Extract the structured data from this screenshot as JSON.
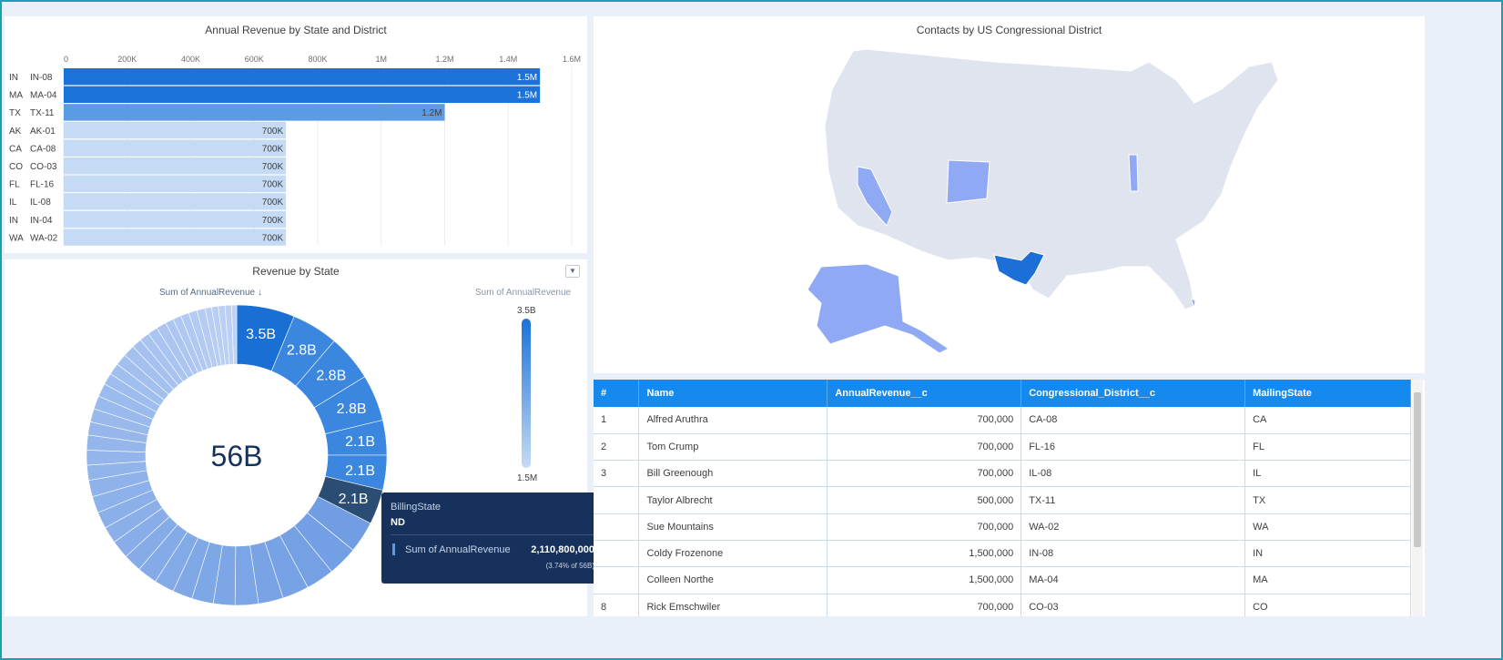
{
  "bar_panel": {
    "title": "Annual Revenue by State and District"
  },
  "donut_panel": {
    "title": "Revenue by State",
    "measure_label": "Sum of AnnualRevenue ↓",
    "legend_title": "Sum of AnnualRevenue",
    "legend_max": "3.5B",
    "legend_min": "1.5M",
    "center_label": "56B",
    "menu_icon": "chevron-down-icon"
  },
  "map_panel": {
    "title": "Contacts by US Congressional District"
  },
  "tooltip": {
    "dim_label": "BillingState",
    "dim_value": "ND",
    "measure_label": "Sum of AnnualRevenue",
    "measure_value": "2,110,800,000",
    "percent": "(3.74% of 56B)"
  },
  "table": {
    "columns": [
      "#",
      "Name",
      "AnnualRevenue__c",
      "Congressional_District__c",
      "MailingState"
    ],
    "rows": [
      [
        "1",
        "Alfred Aruthra",
        "700,000",
        "CA-08",
        "CA"
      ],
      [
        "2",
        "Tom Crump",
        "700,000",
        "FL-16",
        "FL"
      ],
      [
        "3",
        "Bill Greenough",
        "700,000",
        "IL-08",
        "IL"
      ],
      [
        "",
        "Taylor Albrecht",
        "500,000",
        "TX-11",
        "TX"
      ],
      [
        "",
        "Sue Mountains",
        "700,000",
        "WA-02",
        "WA"
      ],
      [
        "",
        "Coldy Frozenone",
        "1,500,000",
        "IN-08",
        "IN"
      ],
      [
        "",
        "Colleen Northe",
        "1,500,000",
        "MA-04",
        "MA"
      ],
      [
        "8",
        "Rick Emschwiler",
        "700,000",
        "CO-03",
        "CO"
      ]
    ]
  },
  "colors": {
    "accent": "#1589ee",
    "dark": "#16325c",
    "bar_dark": "#1b72d8",
    "bar_mid": "#5a9be3",
    "bar_light": "#c5dbf5",
    "map_base": "#e0e4ee",
    "map_light": "#8fa9f4",
    "map_dark": "#1b6fd6"
  },
  "chart_data": [
    {
      "type": "bar",
      "orientation": "horizontal",
      "title": "Annual Revenue by State and District",
      "categories": [
        [
          "IN",
          "IN-08"
        ],
        [
          "MA",
          "MA-04"
        ],
        [
          "TX",
          "TX-11"
        ],
        [
          "AK",
          "AK-01"
        ],
        [
          "CA",
          "CA-08"
        ],
        [
          "CO",
          "CO-03"
        ],
        [
          "FL",
          "FL-16"
        ],
        [
          "IL",
          "IL-08"
        ],
        [
          "IN",
          "IN-04"
        ],
        [
          "WA",
          "WA-02"
        ]
      ],
      "values": [
        1500000,
        1500000,
        1200000,
        700000,
        700000,
        700000,
        700000,
        700000,
        700000,
        700000
      ],
      "data_labels": [
        "1.5M",
        "1.5M",
        "1.2M",
        "700K",
        "700K",
        "700K",
        "700K",
        "700K",
        "700K",
        "700K"
      ],
      "xticks": [
        "0",
        "200K",
        "400K",
        "600K",
        "800K",
        "1M",
        "1.2M",
        "1.4M",
        "1.6M"
      ],
      "xlim": [
        0,
        1600000
      ],
      "grid": true
    },
    {
      "type": "pie",
      "donut": true,
      "title": "Revenue by State",
      "total_label": "56B",
      "labeled_values": [
        3.5,
        2.8,
        2.8,
        2.8,
        2.1,
        2.1,
        2.1
      ],
      "labels": [
        "3.5B",
        "2.8B",
        "2.8B",
        "2.8B",
        "2.1B",
        "2.1B",
        "2.1B"
      ],
      "highlighted_index": 6,
      "other_values": [
        1.9,
        1.8,
        1.7,
        1.6,
        1.5,
        1.4,
        1.3,
        1.3,
        1.2,
        1.2,
        1.2,
        1.1,
        1.1,
        1.0,
        1.0,
        1.0,
        1.0,
        0.9,
        0.9,
        0.9,
        0.8,
        0.8,
        0.8,
        0.8,
        0.7,
        0.7,
        0.7,
        0.7,
        0.6,
        0.6,
        0.6,
        0.6,
        0.5,
        0.5,
        0.5,
        0.5,
        0.5,
        0.4,
        0.4,
        0.4,
        0.4,
        0.3
      ],
      "unit": "B"
    }
  ]
}
